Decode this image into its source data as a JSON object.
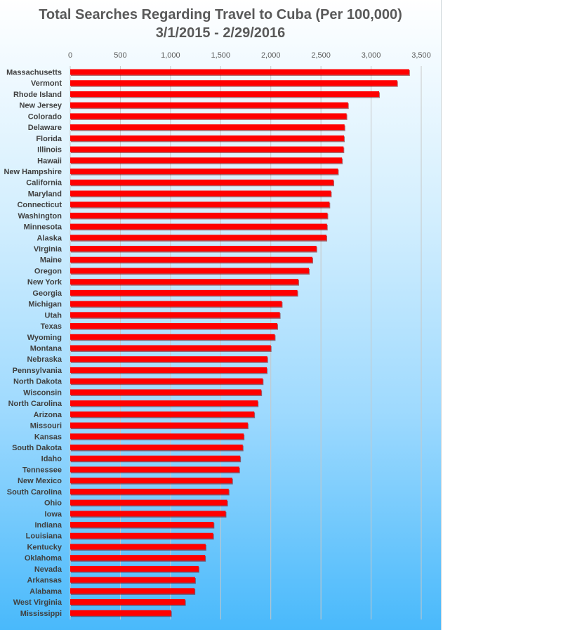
{
  "colors": {
    "bar": "#ff0000",
    "bar_shadow": "#7a0000",
    "grid": "#c8c8c8"
  },
  "chart_data": {
    "type": "bar",
    "orientation": "horizontal",
    "title": "Total Searches Regarding Travel to Cuba (Per 100,000)",
    "subtitle": "3/1/2015 - 2/29/2016",
    "xlabel": "",
    "ylabel": "",
    "xlim": [
      0,
      3500
    ],
    "ticks": [
      0,
      500,
      1000,
      1500,
      2000,
      2500,
      3000,
      3500
    ],
    "tick_labels": [
      "0",
      "500",
      "1,000",
      "1,500",
      "2,000",
      "2,500",
      "3,000",
      "3,500"
    ],
    "axis_position": "top",
    "grid": true,
    "legend": "none",
    "categories": [
      "Massachusetts",
      "Vermont",
      "Rhode Island",
      "New Jersey",
      "Colorado",
      "Delaware",
      "Florida",
      "Illinois",
      "Hawaii",
      "New Hampshire",
      "California",
      "Maryland",
      "Connecticut",
      "Washington",
      "Minnesota",
      "Alaska",
      "Virginia",
      "Maine",
      "Oregon",
      "New York",
      "Georgia",
      "Michigan",
      "Utah",
      "Texas",
      "Wyoming",
      "Montana",
      "Nebraska",
      "Pennsylvania",
      "North Dakota",
      "Wisconsin",
      "North Carolina",
      "Arizona",
      "Missouri",
      "Kansas",
      "South Dakota",
      "Idaho",
      "Tennessee",
      "New Mexico",
      "South Carolina",
      "Ohio",
      "Iowa",
      "Indiana",
      "Louisiana",
      "Kentucky",
      "Oklahoma",
      "Nevada",
      "Arkansas",
      "Alabama",
      "West Virginia",
      "Mississippi"
    ],
    "values": [
      3380,
      3260,
      3080,
      2770,
      2755,
      2735,
      2730,
      2725,
      2710,
      2670,
      2625,
      2600,
      2585,
      2565,
      2560,
      2555,
      2455,
      2415,
      2380,
      2275,
      2265,
      2110,
      2090,
      2065,
      2040,
      2000,
      1965,
      1960,
      1920,
      1905,
      1870,
      1835,
      1770,
      1730,
      1720,
      1695,
      1685,
      1615,
      1580,
      1565,
      1550,
      1430,
      1425,
      1350,
      1345,
      1280,
      1245,
      1240,
      1145,
      1005
    ]
  }
}
